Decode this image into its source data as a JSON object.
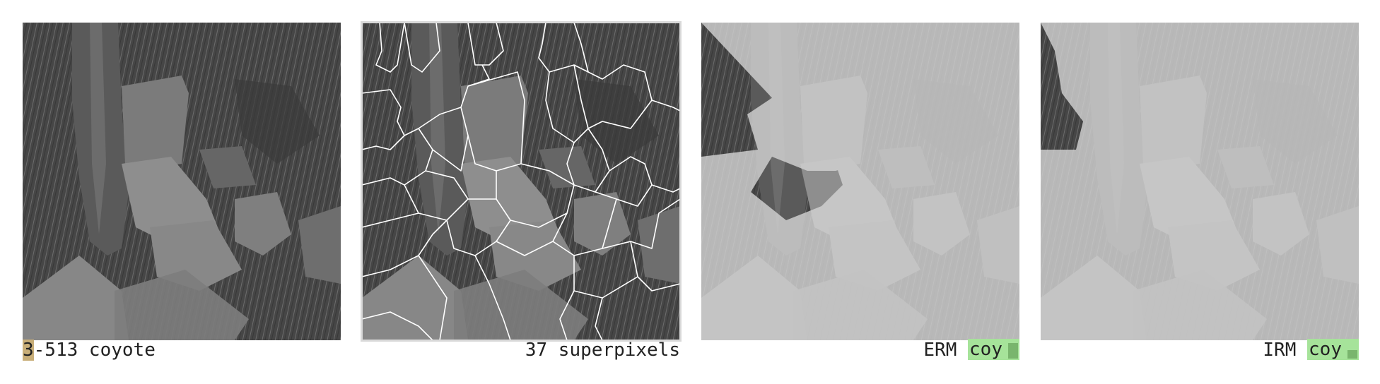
{
  "panels": [
    {
      "name": "original",
      "caption_id_highlight": "3",
      "caption_rest": "-513 coyote"
    },
    {
      "name": "superpixels",
      "caption": "37 superpixels"
    },
    {
      "name": "erm",
      "method": "ERM",
      "prediction": "coy",
      "confidence": 0.85
    },
    {
      "name": "irm",
      "method": "IRM",
      "prediction": "coy",
      "confidence": 0.45
    }
  ],
  "colors": {
    "photo_dark": "#3e3e3e",
    "photo_mid": "#6b6b6b",
    "mask_light": "#b5b5b5",
    "boundary": "#ffffff",
    "id_highlight": "#c8ae78",
    "badge_bg": "#a6e39a",
    "badge_fill": "#79b56d"
  }
}
